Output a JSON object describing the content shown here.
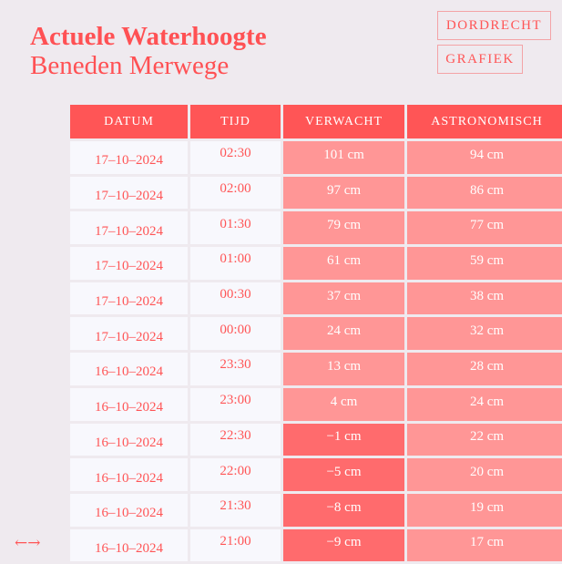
{
  "header": {
    "title": "Actuele Waterhoogte",
    "subtitle": "Beneden Merwege"
  },
  "buttons": {
    "location": "DORDRECHT",
    "chart": "GRAFIEK"
  },
  "table": {
    "columns": [
      "DATUM",
      "TIJD",
      "VERWACHT",
      "ASTRONOMISCH"
    ],
    "rows": [
      {
        "date": "17–10–2024",
        "time": "02:30",
        "expected": "101 cm",
        "astro": "94 cm",
        "negative": false
      },
      {
        "date": "17–10–2024",
        "time": "02:00",
        "expected": "97 cm",
        "astro": "86 cm",
        "negative": false
      },
      {
        "date": "17–10–2024",
        "time": "01:30",
        "expected": "79 cm",
        "astro": "77 cm",
        "negative": false
      },
      {
        "date": "17–10–2024",
        "time": "01:00",
        "expected": "61 cm",
        "astro": "59 cm",
        "negative": false
      },
      {
        "date": "17–10–2024",
        "time": "00:30",
        "expected": "37 cm",
        "astro": "38 cm",
        "negative": false
      },
      {
        "date": "17–10–2024",
        "time": "00:00",
        "expected": "24 cm",
        "astro": "32 cm",
        "negative": false
      },
      {
        "date": "16–10–2024",
        "time": "23:30",
        "expected": "13 cm",
        "astro": "28 cm",
        "negative": false
      },
      {
        "date": "16–10–2024",
        "time": "23:00",
        "expected": "4 cm",
        "astro": "24 cm",
        "negative": false
      },
      {
        "date": "16–10–2024",
        "time": "22:30",
        "expected": "−1 cm",
        "astro": "22 cm",
        "negative": true
      },
      {
        "date": "16–10–2024",
        "time": "22:00",
        "expected": "−5 cm",
        "astro": "20 cm",
        "negative": true
      },
      {
        "date": "16–10–2024",
        "time": "21:30",
        "expected": "−8 cm",
        "astro": "19 cm",
        "negative": true
      },
      {
        "date": "16–10–2024",
        "time": "21:00",
        "expected": "−9 cm",
        "astro": "17 cm",
        "negative": true
      }
    ]
  },
  "scroll_hint": "←→",
  "colors": {
    "accent": "#ff5556",
    "background": "#efeaef",
    "cell": "#f8f8fd",
    "positive": "#ff9696",
    "negative": "#ff6b6d"
  }
}
